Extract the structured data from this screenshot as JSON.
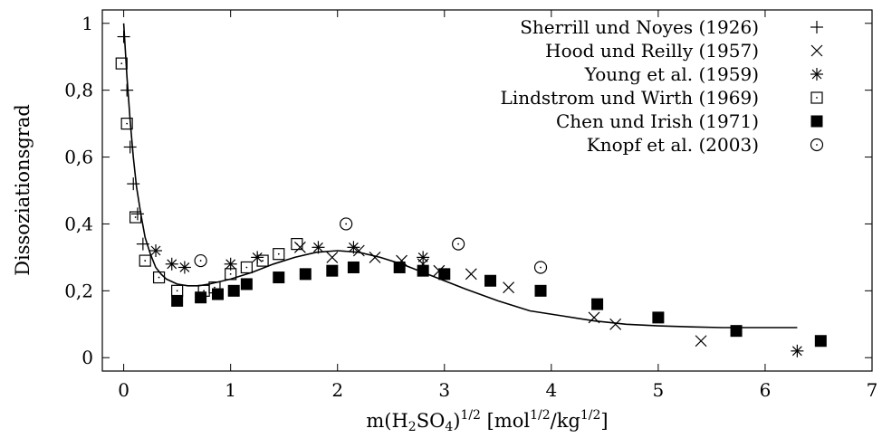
{
  "chart_data": {
    "type": "scatter",
    "title": "",
    "xlabel": "m(H2SO4)^1/2 [mol^1/2/kg^1/2]",
    "ylabel": "Dissoziationsgrad",
    "xlim": [
      -0.2,
      7
    ],
    "ylim": [
      -0.04,
      1.04
    ],
    "xticks": [
      "0",
      "1",
      "2",
      "3",
      "4",
      "5",
      "6",
      "7"
    ],
    "yticks": [
      "0",
      "0,2",
      "0,4",
      "0,6",
      "0,8",
      "1"
    ],
    "grid": false,
    "legend_position": "top-right",
    "series": [
      {
        "name": "Sherrill und Noyes (1926)",
        "marker": "plus",
        "x": [
          0.0,
          0.03,
          0.06,
          0.09,
          0.13,
          0.18
        ],
        "y": [
          0.96,
          0.8,
          0.63,
          0.52,
          0.43,
          0.34
        ]
      },
      {
        "name": "Hood und Reilly (1957)",
        "marker": "cross",
        "x": [
          1.65,
          1.95,
          2.2,
          2.35,
          2.6,
          2.8,
          2.95,
          3.25,
          3.6,
          4.4,
          4.6,
          5.4
        ],
        "y": [
          0.33,
          0.3,
          0.32,
          0.3,
          0.29,
          0.28,
          0.26,
          0.25,
          0.21,
          0.12,
          0.1,
          0.05
        ]
      },
      {
        "name": "Young et al. (1959)",
        "marker": "asterisk",
        "x": [
          0.3,
          0.45,
          0.57,
          1.0,
          1.25,
          1.82,
          2.15,
          2.8,
          6.3
        ],
        "y": [
          0.32,
          0.28,
          0.27,
          0.28,
          0.3,
          0.33,
          0.33,
          0.3,
          0.02
        ]
      },
      {
        "name": "Lindstrom und Wirth (1969)",
        "marker": "square",
        "x": [
          -0.02,
          0.03,
          0.11,
          0.2,
          0.33,
          0.5,
          0.75,
          0.85,
          1.0,
          1.15,
          1.3,
          1.45,
          1.62
        ],
        "y": [
          0.88,
          0.7,
          0.42,
          0.29,
          0.24,
          0.2,
          0.2,
          0.21,
          0.25,
          0.27,
          0.29,
          0.31,
          0.34
        ]
      },
      {
        "name": "Chen und Irish (1971)",
        "marker": "filled-square",
        "x": [
          0.5,
          0.72,
          0.88,
          1.03,
          1.15,
          1.45,
          1.7,
          1.95,
          2.15,
          2.58,
          2.8,
          3.0,
          3.43,
          3.9,
          4.43,
          5.0,
          5.73,
          6.52
        ],
        "y": [
          0.17,
          0.18,
          0.19,
          0.2,
          0.22,
          0.24,
          0.25,
          0.26,
          0.27,
          0.27,
          0.26,
          0.25,
          0.23,
          0.2,
          0.16,
          0.12,
          0.08,
          0.05
        ]
      },
      {
        "name": "Knopf et al. (2003)",
        "marker": "circle",
        "x": [
          0.72,
          2.08,
          3.13,
          3.9
        ],
        "y": [
          0.29,
          0.4,
          0.34,
          0.27
        ]
      }
    ],
    "fit_curve": {
      "x": [
        0.0,
        0.03,
        0.06,
        0.09,
        0.12,
        0.16,
        0.2,
        0.25,
        0.3,
        0.35,
        0.4,
        0.5,
        0.6,
        0.7,
        0.8,
        1.0,
        1.2,
        1.4,
        1.6,
        1.8,
        2.0,
        2.2,
        2.4,
        2.6,
        2.8,
        3.0,
        3.2,
        3.5,
        3.8,
        4.1,
        4.4,
        4.7,
        5.0,
        5.3,
        5.6,
        5.9,
        6.3
      ],
      "y": [
        1.0,
        0.84,
        0.71,
        0.6,
        0.51,
        0.43,
        0.36,
        0.31,
        0.27,
        0.25,
        0.235,
        0.22,
        0.215,
        0.215,
        0.22,
        0.235,
        0.255,
        0.28,
        0.3,
        0.315,
        0.32,
        0.315,
        0.3,
        0.28,
        0.255,
        0.23,
        0.205,
        0.17,
        0.14,
        0.125,
        0.11,
        0.1,
        0.095,
        0.092,
        0.09,
        0.09,
        0.09
      ]
    }
  }
}
